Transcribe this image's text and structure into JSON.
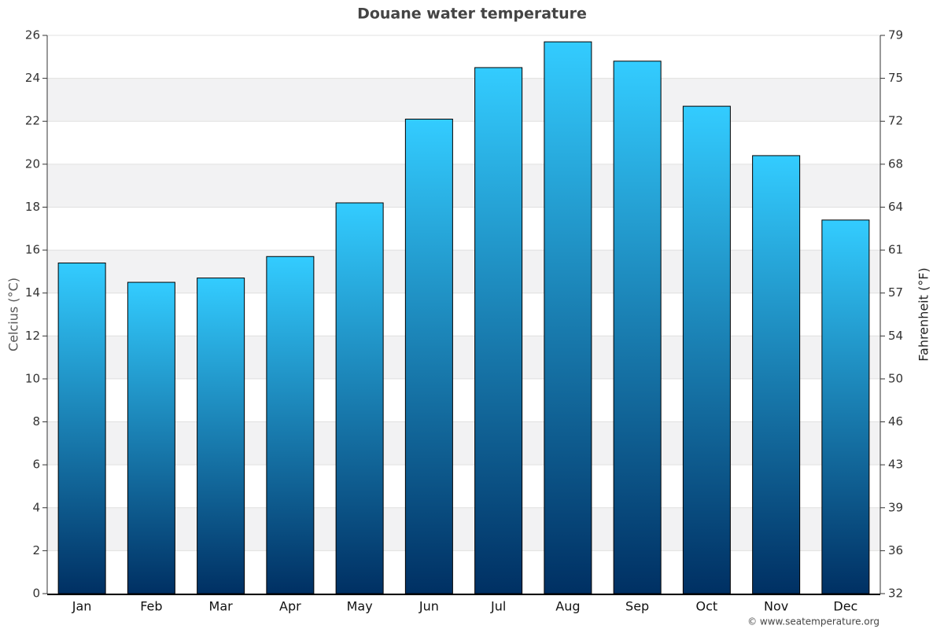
{
  "chart_data": {
    "type": "bar",
    "title": "Douane water temperature",
    "y_label": "Celcius (°C)",
    "y2_label": "Fahrenheit (°F)",
    "categories": [
      "Jan",
      "Feb",
      "Mar",
      "Apr",
      "May",
      "Jun",
      "Jul",
      "Aug",
      "Sep",
      "Oct",
      "Nov",
      "Dec"
    ],
    "values": [
      15.4,
      14.5,
      14.7,
      15.7,
      18.2,
      22.1,
      24.5,
      25.7,
      24.8,
      22.7,
      20.4,
      17.4
    ],
    "gradient": [
      "#33ccff",
      "#003063"
    ],
    "ylim": [
      0,
      26
    ],
    "yticks": [
      0,
      2,
      4,
      6,
      8,
      10,
      12,
      14,
      16,
      18,
      20,
      22,
      24,
      26
    ],
    "y2lim": [
      32,
      78.8
    ],
    "y2ticks": [
      32,
      {
        "value": 35.6,
        "label": "36"
      },
      {
        "value": 39.2,
        "label": "39"
      },
      {
        "value": 42.8,
        "label": "43"
      },
      {
        "value": 46.4,
        "label": "46"
      },
      50,
      {
        "value": 53.6,
        "label": "54"
      },
      {
        "value": 57.2,
        "label": "57"
      },
      {
        "value": 60.8,
        "label": "61"
      },
      {
        "value": 64.4,
        "label": "64"
      },
      68,
      {
        "value": 71.6,
        "label": "72"
      },
      {
        "value": 75.2,
        "label": "75"
      },
      {
        "value": 78.8,
        "label": "79"
      }
    ],
    "grid": true,
    "credit": "© www.seatemperature.org"
  }
}
